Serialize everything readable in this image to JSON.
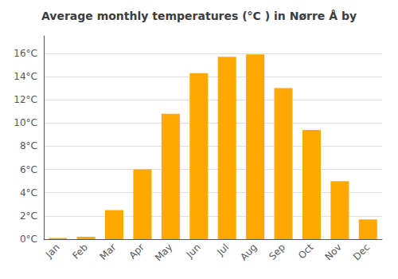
{
  "chart_data": {
    "type": "bar",
    "title": "Average monthly temperatures (°C ) in Nørre Å by",
    "categories": [
      "Jan",
      "Feb",
      "Mar",
      "Apr",
      "May",
      "Jun",
      "Jul",
      "Aug",
      "Sep",
      "Oct",
      "Nov",
      "Dec"
    ],
    "values": [
      0.1,
      0.2,
      2.5,
      6.0,
      10.8,
      14.3,
      15.7,
      15.9,
      13.0,
      9.4,
      5.0,
      1.7
    ],
    "color": "#FFA800",
    "ylim": [
      0,
      17.5
    ],
    "yticks": [
      {
        "value": 0,
        "label": "0°C"
      },
      {
        "value": 2,
        "label": "2°C"
      },
      {
        "value": 4,
        "label": "4°C"
      },
      {
        "value": 6,
        "label": "6°C"
      },
      {
        "value": 8,
        "label": "8°C"
      },
      {
        "value": 10,
        "label": "10°C"
      },
      {
        "value": 12,
        "label": "12°C"
      },
      {
        "value": 14,
        "label": "14°C"
      },
      {
        "value": 16,
        "label": "16°C"
      }
    ],
    "grid": true
  }
}
